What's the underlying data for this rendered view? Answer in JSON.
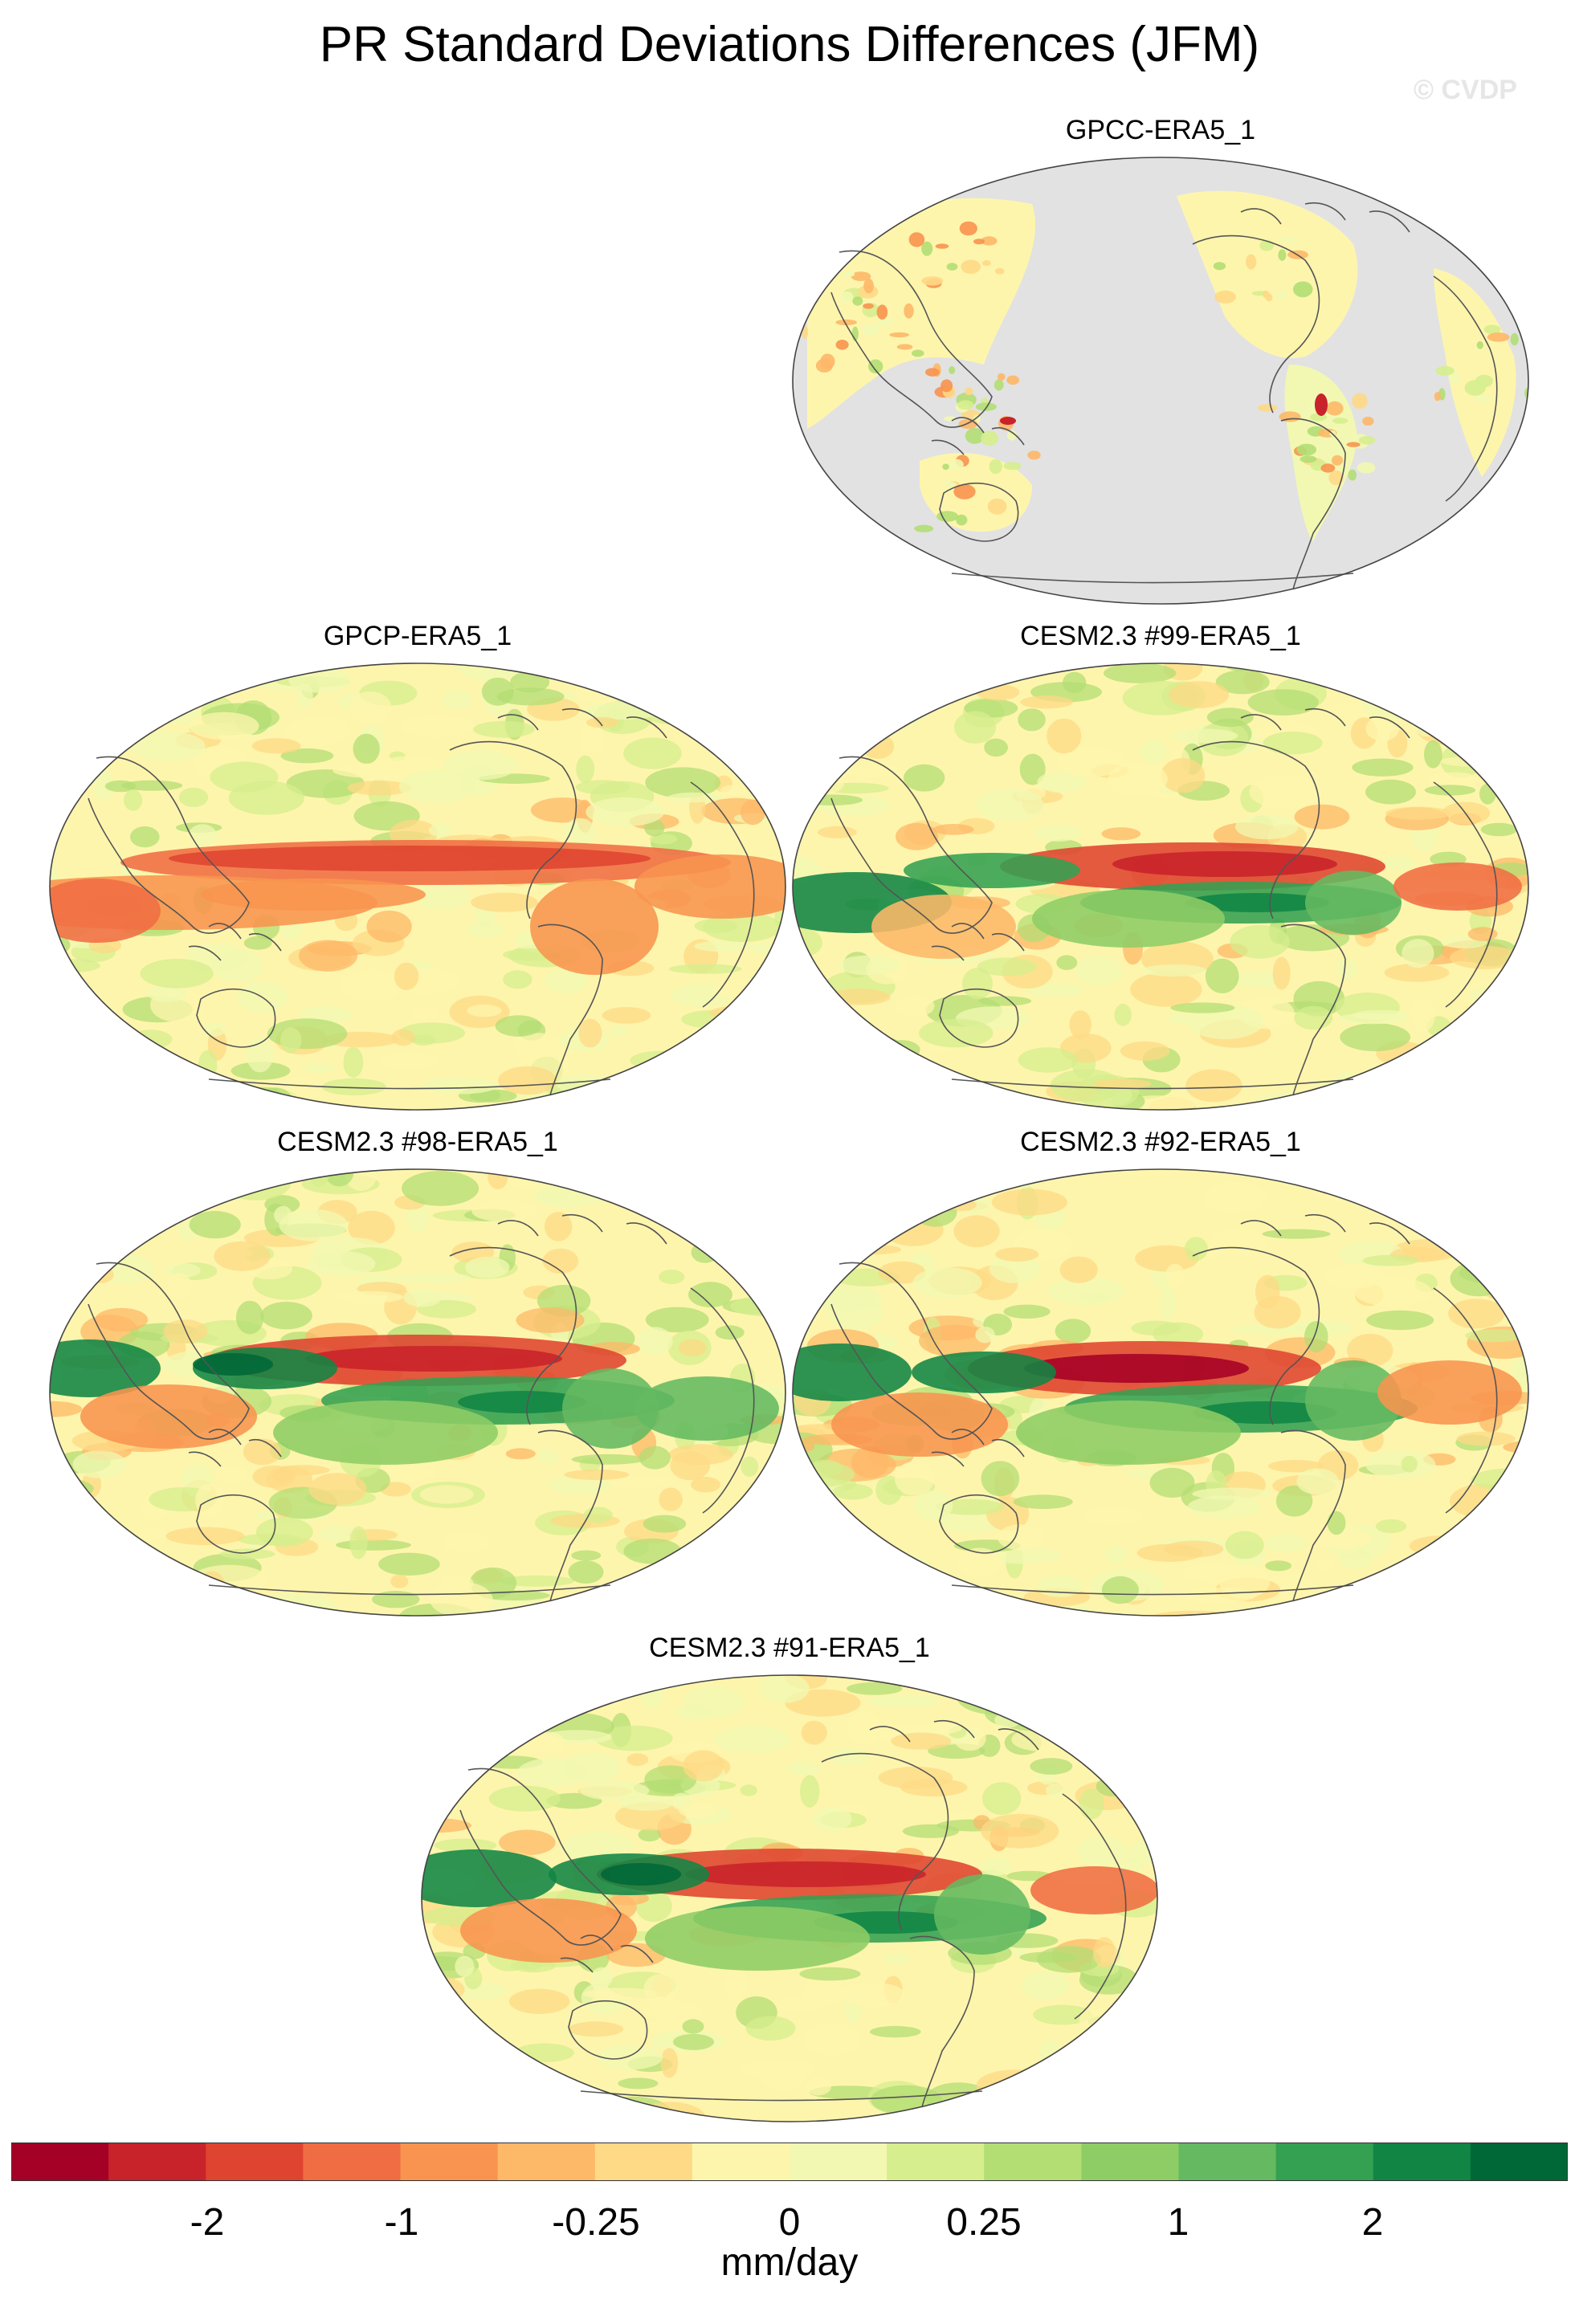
{
  "title": "PR Standard Deviations Differences (JFM)",
  "watermark": "© CVDP",
  "colors": {
    "map_background_gpcc": "#e2e2e2",
    "coastline": "#555555",
    "palette": [
      "#a50026",
      "#c8222a",
      "#df4430",
      "#f06d43",
      "#f8944f",
      "#fdb868",
      "#fed986",
      "#fef5ad",
      "#f2f8b2",
      "#d6ee8e",
      "#b3de74",
      "#8ecd65",
      "#64b961",
      "#33a052",
      "#118544",
      "#006837"
    ]
  },
  "panels": [
    {
      "id": "gpcc",
      "title": "GPCC-ERA5_1",
      "ocean_masked": true
    },
    {
      "id": "gpcp",
      "title": "GPCP-ERA5_1",
      "ocean_masked": false
    },
    {
      "id": "cesm99",
      "title": "CESM2.3 #99-ERA5_1",
      "ocean_masked": false
    },
    {
      "id": "cesm98",
      "title": "CESM2.3 #98-ERA5_1",
      "ocean_masked": false
    },
    {
      "id": "cesm92",
      "title": "CESM2.3 #92-ERA5_1",
      "ocean_masked": false
    },
    {
      "id": "cesm91",
      "title": "CESM2.3 #91-ERA5_1",
      "ocean_masked": false
    }
  ],
  "colorbar": {
    "tick_labels": [
      "-2",
      "-1",
      "-0.25",
      "0",
      "0.25",
      "1",
      "2"
    ],
    "units": "mm/day"
  }
}
